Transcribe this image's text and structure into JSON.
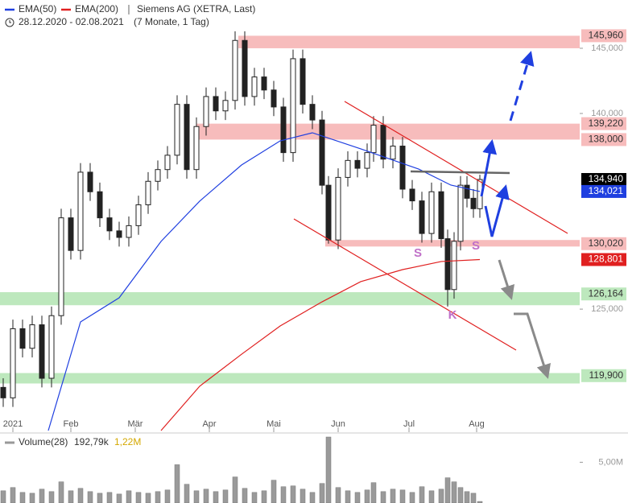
{
  "chart_data": [
    {
      "type": "candlestick",
      "title": "Siemens AG (XETRA, Last)",
      "date_range": "28.12.2020 - 02.08.2021",
      "period": "(7 Monate, 1 Tag)",
      "color": "#222222",
      "x": [
        1,
        4,
        7,
        10,
        13,
        16,
        19,
        22,
        25,
        28,
        31,
        34,
        37,
        40,
        43,
        46,
        49,
        52,
        55,
        58,
        61,
        64,
        67,
        70,
        73,
        76,
        79,
        82,
        85,
        88,
        91,
        94,
        97,
        100,
        102,
        105,
        108,
        111,
        114,
        116,
        119,
        122,
        125,
        128,
        131,
        134,
        137,
        139,
        141,
        143,
        145,
        147,
        149
      ],
      "ohlc": [
        [
          119000,
          119700,
          117500,
          118200
        ],
        [
          118200,
          124200,
          117500,
          123500
        ],
        [
          123500,
          124200,
          121300,
          122000
        ],
        [
          122000,
          124500,
          121300,
          123800
        ],
        [
          123800,
          124500,
          119000,
          119700
        ],
        [
          119700,
          125200,
          119000,
          124500
        ],
        [
          124500,
          132700,
          123800,
          132000
        ],
        [
          132000,
          132700,
          128800,
          129500
        ],
        [
          129500,
          136200,
          128800,
          135500
        ],
        [
          135500,
          136200,
          133300,
          134000
        ],
        [
          134000,
          134700,
          131300,
          132000
        ],
        [
          132000,
          132700,
          130300,
          131000
        ],
        [
          131000,
          131700,
          129800,
          130500
        ],
        [
          130500,
          132100,
          129800,
          131400
        ],
        [
          131400,
          133700,
          130700,
          133000
        ],
        [
          133000,
          135500,
          132300,
          134800
        ],
        [
          134800,
          136400,
          134100,
          135700
        ],
        [
          135700,
          137500,
          135000,
          136800
        ],
        [
          136800,
          141400,
          136100,
          140700
        ],
        [
          140700,
          141400,
          135000,
          135700
        ],
        [
          135700,
          139700,
          135000,
          139000
        ],
        [
          139000,
          142000,
          138300,
          141300
        ],
        [
          141300,
          142000,
          139500,
          140200
        ],
        [
          140200,
          141700,
          139500,
          141000
        ],
        [
          141000,
          146300,
          140300,
          145600
        ],
        [
          145600,
          146300,
          140600,
          141300
        ],
        [
          141300,
          143500,
          140600,
          142800
        ],
        [
          142800,
          143500,
          141100,
          141800
        ],
        [
          141800,
          142500,
          139800,
          140500
        ],
        [
          140500,
          141200,
          136300,
          137000
        ],
        [
          137000,
          144900,
          136300,
          144200
        ],
        [
          144200,
          144900,
          140000,
          140700
        ],
        [
          140700,
          141400,
          138800,
          139500
        ],
        [
          139500,
          140200,
          133800,
          134500
        ],
        [
          134500,
          135200,
          130020,
          130300
        ],
        [
          130300,
          135800,
          129600,
          135100
        ],
        [
          135100,
          137100,
          134400,
          136400
        ],
        [
          136400,
          137100,
          135100,
          135800
        ],
        [
          135800,
          137700,
          135100,
          137000
        ],
        [
          137000,
          139800,
          136300,
          139100
        ],
        [
          139100,
          139800,
          135800,
          136500
        ],
        [
          136500,
          138200,
          135800,
          137500
        ],
        [
          137500,
          138200,
          133500,
          134200
        ],
        [
          134200,
          134900,
          132600,
          133300
        ],
        [
          133300,
          134000,
          130100,
          130800
        ],
        [
          130800,
          134700,
          130100,
          134000
        ],
        [
          134000,
          134700,
          129700,
          130400
        ],
        [
          130400,
          131100,
          125200,
          126500
        ],
        [
          126500,
          130900,
          125800,
          130200
        ],
        [
          130200,
          135200,
          129500,
          134500
        ],
        [
          134500,
          135200,
          132800,
          133500
        ],
        [
          133500,
          134200,
          132000,
          132700
        ],
        [
          132700,
          135300,
          132000,
          134940
        ]
      ],
      "lines": [
        {
          "name": "EMA(50)",
          "color": "#1f3fe0",
          "x": [
            15,
            25,
            37,
            50,
            62,
            75,
            87,
            97,
            112,
            130,
            140,
            149
          ],
          "values": [
            115690,
            124020,
            125870,
            130190,
            133280,
            136050,
            137900,
            138520,
            137290,
            135740,
            134510,
            134021
          ]
        },
        {
          "name": "EMA(200)",
          "color": "#e02020",
          "x": [
            50,
            62,
            75,
            87,
            100,
            112,
            125,
            137,
            149
          ],
          "values": [
            115690,
            119090,
            121540,
            123710,
            125560,
            127110,
            128030,
            128650,
            128801
          ]
        }
      ],
      "zones": [
        {
          "from": 74,
          "low": 145000,
          "high": 145960,
          "color": "#f7bcbc"
        },
        {
          "from": 61,
          "low": 138000,
          "high": 139220,
          "color": "#f7bcbc"
        },
        {
          "from": 101,
          "low": 129800,
          "high": 130300,
          "color": "#f7bcbc"
        },
        {
          "from": 0,
          "low": 125300,
          "high": 126300,
          "color": "#bde8bd"
        },
        {
          "from": 0,
          "low": 119300,
          "high": 120100,
          "color": "#bde8bd"
        }
      ],
      "price_tags": [
        {
          "value": 145960,
          "label": "145,960",
          "bg": "#f7bcbc",
          "fg": "#333333"
        },
        {
          "value": 139220,
          "label": "139,220",
          "bg": "#f7bcbc",
          "fg": "#333333"
        },
        {
          "value": 138000,
          "label": "138,000",
          "bg": "#f7bcbc",
          "fg": "#333333"
        },
        {
          "value": 134940,
          "label": "134,940",
          "bg": "#000000",
          "fg": "#ffffff"
        },
        {
          "value": 134021,
          "label": "134,021",
          "bg": "#1f3fe0",
          "fg": "#ffffff"
        },
        {
          "value": 130020,
          "label": "130,020",
          "bg": "#f7bcbc",
          "fg": "#333333"
        },
        {
          "value": 128801,
          "label": "128,801",
          "bg": "#e02020",
          "fg": "#ffffff"
        },
        {
          "value": 126164,
          "label": "126,164",
          "bg": "#bde8bd",
          "fg": "#333333"
        },
        {
          "value": 119900,
          "label": "119,900",
          "bg": "#bde8bd",
          "fg": "#333333"
        }
      ],
      "annotations": [
        "S",
        "S",
        "K"
      ],
      "xlim": [
        0,
        180
      ],
      "xticks": [
        {
          "value": 4,
          "label": "2021"
        },
        {
          "value": 22,
          "label": "Feb"
        },
        {
          "value": 42,
          "label": "Mär"
        },
        {
          "value": 65,
          "label": "Apr"
        },
        {
          "value": 85,
          "label": "Mai"
        },
        {
          "value": 105,
          "label": "Jun"
        },
        {
          "value": 127,
          "label": "Jul"
        },
        {
          "value": 148,
          "label": "Aug"
        }
      ],
      "ylim": [
        115690,
        148700
      ],
      "yticks": [
        {
          "value": 145000,
          "label": "145,000"
        },
        {
          "value": 140000,
          "label": "140,000"
        },
        {
          "value": 125000,
          "label": "125,000"
        }
      ]
    },
    {
      "type": "bar",
      "title": "Volume(28)",
      "stats": [
        "192,79k",
        "1,22M"
      ],
      "color": "#9a9a9a",
      "values": [
        1500000,
        1900000,
        1300000,
        1200000,
        1700000,
        1400000,
        2600000,
        1500000,
        1800000,
        1400000,
        1200000,
        1300000,
        1100000,
        1500000,
        1300000,
        1200000,
        1400000,
        1600000,
        4700000,
        2300000,
        1500000,
        1700000,
        1400000,
        1600000,
        3200000,
        1800000,
        1300000,
        1500000,
        2800000,
        2000000,
        2100000,
        1700000,
        1300000,
        2400000,
        8100000,
        1900000,
        1500000,
        1300000,
        1600000,
        2500000,
        1400000,
        1700000,
        1600000,
        1300000,
        2000000,
        1500000,
        1700000,
        3100000,
        2600000,
        1900000,
        1400000,
        1200000,
        192790
      ],
      "ylim": [
        0,
        8100000
      ],
      "yticks": [
        {
          "value": 5000000,
          "label": "5,00M"
        }
      ]
    }
  ]
}
